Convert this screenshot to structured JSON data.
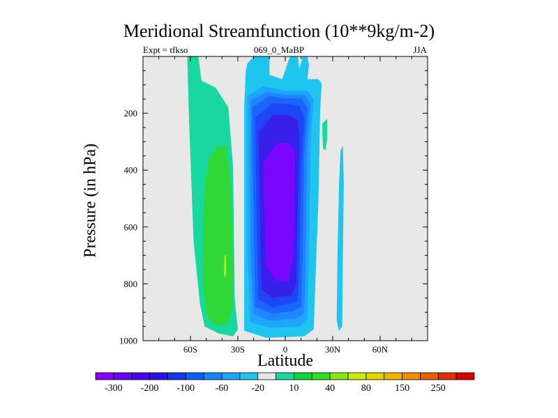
{
  "chart_data": {
    "type": "heatmap",
    "variant": "filled-contour",
    "title": "Meridional Streamfunction (10**9kg/m-2)",
    "subtitle_left": "Expt = tfkso",
    "subtitle_center": "069_0_MaBP",
    "subtitle_right": "JJA",
    "xlabel": "Latitude",
    "ylabel": "Pressure (in hPa)",
    "xlim": [
      -90,
      90
    ],
    "ylim": [
      1000,
      0
    ],
    "x_ticks": [
      -60,
      -30,
      0,
      30,
      60
    ],
    "x_tick_labels": [
      "60S",
      "30S",
      "0",
      "30N",
      "60N"
    ],
    "y_ticks": [
      200,
      400,
      600,
      800,
      1000
    ],
    "y_tick_labels": [
      "200",
      "400",
      "600",
      "800",
      "1000"
    ],
    "background_color": "#e8e8e8",
    "colorbar": {
      "colors": [
        "#8a00ff",
        "#6a00ff",
        "#4b00f5",
        "#2a10e6",
        "#1535f0",
        "#0a60ff",
        "#1485ff",
        "#20a8ff",
        "#1ec5ef",
        "#e6e6e6",
        "#18d8a0",
        "#14d23c",
        "#2ee020",
        "#88e616",
        "#c8ec10",
        "#e8d200",
        "#f0b400",
        "#f09000",
        "#ea6000",
        "#e03000",
        "#d80000"
      ],
      "labels": [
        "-300",
        "-200",
        "-100",
        "-60",
        "-20",
        "10",
        "40",
        "80",
        "150",
        "250"
      ]
    },
    "regions": [
      {
        "name": "southern-cell-outer",
        "value": 15,
        "color": "#18d8a0",
        "points": [
          [
            -62,
            0
          ],
          [
            -55,
            0
          ],
          [
            -53,
            85
          ],
          [
            -44,
            110
          ],
          [
            -36,
            180
          ],
          [
            -33,
            390
          ],
          [
            -32,
            850
          ],
          [
            -30,
            960
          ],
          [
            -33,
            985
          ],
          [
            -42,
            975
          ],
          [
            -51,
            950
          ],
          [
            -54,
            870
          ],
          [
            -58,
            650
          ],
          [
            -61,
            200
          ]
        ]
      },
      {
        "name": "southern-cell-inner",
        "value": 35,
        "color": "#30d838",
        "points": [
          [
            -51,
            450
          ],
          [
            -48,
            360
          ],
          [
            -43,
            315
          ],
          [
            -37,
            318
          ],
          [
            -34,
            480
          ],
          [
            -33,
            700
          ],
          [
            -33,
            880
          ],
          [
            -37,
            945
          ],
          [
            -45,
            943
          ],
          [
            -50,
            910
          ],
          [
            -52,
            800
          ],
          [
            -52,
            600
          ]
        ]
      },
      {
        "name": "southern-cell-core",
        "value": 45,
        "color": "#b8e818",
        "points": [
          [
            -38.5,
            700
          ],
          [
            -37.5,
            700
          ],
          [
            -37.3,
            760
          ],
          [
            -38.2,
            780
          ],
          [
            -38.8,
            760
          ]
        ]
      },
      {
        "name": "hadley-cell-1",
        "value": -15,
        "color": "#1ec5ef",
        "points": [
          [
            -26,
            175
          ],
          [
            -25,
            55
          ],
          [
            -24,
            25
          ],
          [
            -20,
            0
          ],
          [
            -10,
            0
          ],
          [
            -10,
            65
          ],
          [
            -2,
            80
          ],
          [
            -2,
            80
          ],
          [
            3,
            0
          ],
          [
            8,
            0
          ],
          [
            9,
            45
          ],
          [
            11,
            0
          ],
          [
            14,
            0
          ],
          [
            15,
            30
          ],
          [
            14,
            80
          ],
          [
            21,
            80
          ],
          [
            23,
            95
          ],
          [
            22,
            200
          ],
          [
            21,
            500
          ],
          [
            19,
            800
          ],
          [
            18,
            960
          ],
          [
            12,
            985
          ],
          [
            -12,
            990
          ],
          [
            -26,
            965
          ],
          [
            -26,
            700
          ]
        ]
      },
      {
        "name": "hadley-cell-2",
        "value": -30,
        "color": "#1fa4ff",
        "points": [
          [
            -24,
            140
          ],
          [
            -14,
            105
          ],
          [
            0,
            120
          ],
          [
            14,
            120
          ],
          [
            18,
            150
          ],
          [
            16,
            300
          ],
          [
            15,
            700
          ],
          [
            14,
            920
          ],
          [
            10,
            950
          ],
          [
            -10,
            955
          ],
          [
            -22,
            935
          ],
          [
            -24,
            700
          ]
        ]
      },
      {
        "name": "hadley-cell-3",
        "value": -50,
        "color": "#1f86ff",
        "points": [
          [
            -22,
            155
          ],
          [
            -12,
            125
          ],
          [
            0,
            135
          ],
          [
            12,
            135
          ],
          [
            16,
            165
          ],
          [
            14,
            320
          ],
          [
            13,
            700
          ],
          [
            12,
            900
          ],
          [
            8,
            920
          ],
          [
            -10,
            930
          ],
          [
            -20,
            905
          ],
          [
            -22,
            700
          ]
        ]
      },
      {
        "name": "hadley-cell-4",
        "value": -70,
        "color": "#1a64ff",
        "points": [
          [
            -21,
            180
          ],
          [
            -10,
            140
          ],
          [
            0,
            148
          ],
          [
            10,
            148
          ],
          [
            14,
            180
          ],
          [
            12,
            350
          ],
          [
            11,
            700
          ],
          [
            10,
            880
          ],
          [
            5,
            895
          ],
          [
            -8,
            905
          ],
          [
            -19,
            880
          ],
          [
            -20,
            600
          ]
        ]
      },
      {
        "name": "hadley-cell-5",
        "value": -90,
        "color": "#1d46f5",
        "points": [
          [
            -19,
            215
          ],
          [
            -8,
            165
          ],
          [
            2,
            168
          ],
          [
            9,
            175
          ],
          [
            12,
            220
          ],
          [
            10,
            400
          ],
          [
            9,
            700
          ],
          [
            8,
            860
          ],
          [
            2,
            870
          ],
          [
            -8,
            882
          ],
          [
            -17,
            855
          ],
          [
            -18,
            600
          ]
        ]
      },
      {
        "name": "hadley-cell-6",
        "value": -150,
        "color": "#3620ea",
        "points": [
          [
            -17,
            270
          ],
          [
            -8,
            205
          ],
          [
            2,
            205
          ],
          [
            8,
            225
          ],
          [
            9,
            300
          ],
          [
            8,
            500
          ],
          [
            7,
            800
          ],
          [
            4,
            840
          ],
          [
            -8,
            850
          ],
          [
            -15,
            820
          ],
          [
            -16,
            600
          ]
        ]
      },
      {
        "name": "hadley-cell-core",
        "value": -250,
        "color": "#7a06ff",
        "points": [
          [
            -14,
            370
          ],
          [
            -5,
            305
          ],
          [
            3,
            305
          ],
          [
            6,
            340
          ],
          [
            6,
            500
          ],
          [
            5,
            700
          ],
          [
            2,
            790
          ],
          [
            -6,
            790
          ],
          [
            -12,
            740
          ],
          [
            -13,
            600
          ]
        ]
      },
      {
        "name": "nh-positive-band",
        "value": 15,
        "color": "#18d8a0",
        "points": [
          [
            23.5,
            235
          ],
          [
            26.5,
            220
          ],
          [
            26.5,
            290
          ],
          [
            25.5,
            330
          ],
          [
            24,
            325
          ],
          [
            23.5,
            280
          ]
        ]
      },
      {
        "name": "nh-negative-band",
        "value": -15,
        "color": "#1ec5ef",
        "points": [
          [
            35,
            330
          ],
          [
            36.5,
            315
          ],
          [
            37,
            450
          ],
          [
            36.5,
            680
          ],
          [
            36,
            950
          ],
          [
            34,
            965
          ],
          [
            32.5,
            930
          ],
          [
            33,
            700
          ],
          [
            34,
            450
          ]
        ]
      }
    ]
  }
}
